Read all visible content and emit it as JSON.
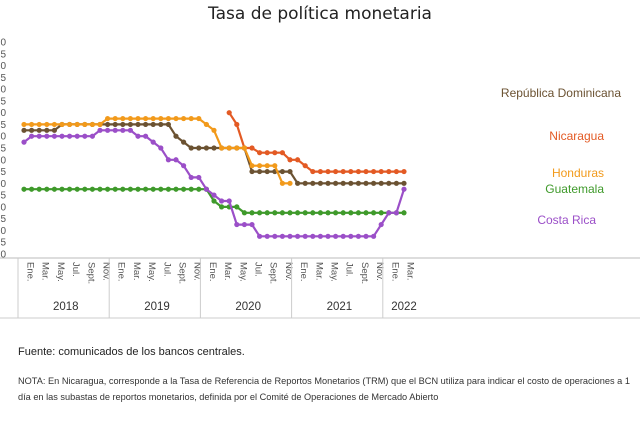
{
  "chart_data": {
    "type": "line",
    "title": "Tasa de política monetaria",
    "y_tick_labels": [
      "0",
      "5",
      "0",
      "5",
      "0",
      "5",
      "0",
      "5",
      "0",
      "5",
      "0",
      "5",
      "0",
      "5",
      "0",
      "5",
      "0",
      "5",
      "0"
    ],
    "ylim": [
      0,
      9
    ],
    "x_tick_labels": [
      "Ene.",
      "Mar.",
      "May.",
      "Jul.",
      "Sept.",
      "Nov.",
      "Ene.",
      "Mar.",
      "May.",
      "Jul.",
      "Sept.",
      "Nov.",
      "Ene.",
      "Mar.",
      "May.",
      "Jul.",
      "Sept.",
      "Nov.",
      "Ene.",
      "Mar.",
      "May.",
      "Jul.",
      "Sept.",
      "Nov.",
      "Ene.",
      "Mar."
    ],
    "years": [
      "2018",
      "2019",
      "2020",
      "2021",
      "2022"
    ],
    "grid": false,
    "series": [
      {
        "name": "República Dominicana",
        "color": "#6b5232",
        "x": [
          0,
          1,
          2,
          3,
          4,
          5,
          6,
          7,
          8,
          9,
          10,
          11,
          12,
          13,
          14,
          15,
          16,
          17,
          18,
          19,
          20,
          21,
          22,
          23,
          24,
          25,
          26,
          27,
          28,
          29,
          30,
          31,
          32,
          33,
          34,
          35,
          36,
          37,
          38,
          39,
          40,
          41,
          42,
          43,
          44,
          45,
          46,
          47,
          48,
          49,
          50
        ],
        "values": [
          5.25,
          5.25,
          5.25,
          5.25,
          5.25,
          5.5,
          5.5,
          5.5,
          5.5,
          5.5,
          5.5,
          5.5,
          5.5,
          5.5,
          5.5,
          5.5,
          5.5,
          5.5,
          5.5,
          5.5,
          5.0,
          4.75,
          4.5,
          4.5,
          4.5,
          4.5,
          4.5,
          4.5,
          4.5,
          4.5,
          3.5,
          3.5,
          3.5,
          3.5,
          3.5,
          3.5,
          3.0,
          3.0,
          3.0,
          3.0,
          3.0,
          3.0,
          3.0,
          3.0,
          3.0,
          3.0,
          3.0,
          3.0,
          3.0,
          3.0,
          3.0
        ]
      },
      {
        "name": "Nicaragua",
        "color": "#e35a24",
        "x": [
          27,
          28,
          29,
          30,
          31,
          32,
          33,
          34,
          35,
          36,
          37,
          38,
          39,
          40,
          41,
          42,
          43,
          44,
          45,
          46,
          47,
          48,
          49,
          50
        ],
        "values": [
          6.0,
          5.5,
          4.5,
          4.5,
          4.3,
          4.3,
          4.3,
          4.3,
          4.0,
          4.0,
          3.75,
          3.5,
          3.5,
          3.5,
          3.5,
          3.5,
          3.5,
          3.5,
          3.5,
          3.5,
          3.5,
          3.5,
          3.5,
          3.5
        ]
      },
      {
        "name": "Honduras",
        "color": "#f29a1b",
        "x": [
          0,
          1,
          2,
          3,
          4,
          5,
          6,
          7,
          8,
          9,
          10,
          11,
          12,
          13,
          14,
          15,
          16,
          17,
          18,
          19,
          20,
          21,
          22,
          23,
          24,
          25,
          26,
          27,
          28,
          29,
          30,
          31,
          32,
          33,
          34,
          35
        ],
        "values": [
          5.5,
          5.5,
          5.5,
          5.5,
          5.5,
          5.5,
          5.5,
          5.5,
          5.5,
          5.5,
          5.5,
          5.75,
          5.75,
          5.75,
          5.75,
          5.75,
          5.75,
          5.75,
          5.75,
          5.75,
          5.75,
          5.75,
          5.75,
          5.75,
          5.5,
          5.25,
          4.5,
          4.5,
          4.5,
          4.5,
          3.75,
          3.75,
          3.75,
          3.75,
          3.0,
          3.0
        ]
      },
      {
        "name": "Guatemala",
        "color": "#3f9a2b",
        "x": [
          0,
          1,
          2,
          3,
          4,
          5,
          6,
          7,
          8,
          9,
          10,
          11,
          12,
          13,
          14,
          15,
          16,
          17,
          18,
          19,
          20,
          21,
          22,
          23,
          24,
          25,
          26,
          27,
          28,
          29,
          30,
          31,
          32,
          33,
          34,
          35,
          36,
          37,
          38,
          39,
          40,
          41,
          42,
          43,
          44,
          45,
          46,
          47,
          48,
          49,
          50
        ],
        "values": [
          2.75,
          2.75,
          2.75,
          2.75,
          2.75,
          2.75,
          2.75,
          2.75,
          2.75,
          2.75,
          2.75,
          2.75,
          2.75,
          2.75,
          2.75,
          2.75,
          2.75,
          2.75,
          2.75,
          2.75,
          2.75,
          2.75,
          2.75,
          2.75,
          2.75,
          2.25,
          2.0,
          2.0,
          2.0,
          1.75,
          1.75,
          1.75,
          1.75,
          1.75,
          1.75,
          1.75,
          1.75,
          1.75,
          1.75,
          1.75,
          1.75,
          1.75,
          1.75,
          1.75,
          1.75,
          1.75,
          1.75,
          1.75,
          1.75,
          1.75,
          1.75
        ]
      },
      {
        "name": "Costa Rica",
        "color": "#9b4fc8",
        "x": [
          0,
          1,
          2,
          3,
          4,
          5,
          6,
          7,
          8,
          9,
          10,
          11,
          12,
          13,
          14,
          15,
          16,
          17,
          18,
          19,
          20,
          21,
          22,
          23,
          24,
          25,
          26,
          27,
          28,
          29,
          30,
          31,
          32,
          33,
          34,
          35,
          36,
          37,
          38,
          39,
          40,
          41,
          42,
          43,
          44,
          45,
          46,
          47,
          48,
          49,
          50
        ],
        "values": [
          4.75,
          5.0,
          5.0,
          5.0,
          5.0,
          5.0,
          5.0,
          5.0,
          5.0,
          5.0,
          5.25,
          5.25,
          5.25,
          5.25,
          5.25,
          5.0,
          5.0,
          4.75,
          4.5,
          4.0,
          4.0,
          3.75,
          3.25,
          3.25,
          2.75,
          2.5,
          2.25,
          2.25,
          1.25,
          1.25,
          1.25,
          0.75,
          0.75,
          0.75,
          0.75,
          0.75,
          0.75,
          0.75,
          0.75,
          0.75,
          0.75,
          0.75,
          0.75,
          0.75,
          0.75,
          0.75,
          0.75,
          1.25,
          1.75,
          1.75,
          2.75
        ]
      }
    ]
  },
  "source": "Fuente: comunicados de los bancos centrales.",
  "note": "NOTA: En Nicaragua, corresponde a la Tasa de Referencia de Reportos Monetarios (TRM) que el BCN utiliza para indicar el costo de operaciones a 1 día en las subastas de reportos monetarios, definida por el Comité de Operaciones de Mercado Abierto"
}
